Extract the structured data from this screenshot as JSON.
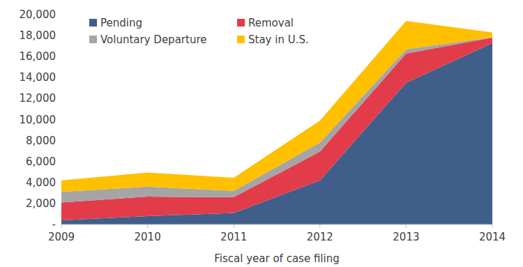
{
  "chart_data": {
    "type": "area",
    "stacked": true,
    "grid": false,
    "legend": "top",
    "x_label": "Fiscal year of case filing",
    "categories": [
      "2009",
      "2010",
      "2011",
      "2012",
      "2013",
      "2014"
    ],
    "series": [
      {
        "name": "Pending",
        "color": "#3f5f8a",
        "values": [
          400,
          800,
          1100,
          4200,
          13500,
          17300
        ]
      },
      {
        "name": "Removal",
        "color": "#e23c4b",
        "values": [
          1700,
          1850,
          1500,
          2750,
          2800,
          500
        ]
      },
      {
        "name": "Voluntary Departure",
        "color": "#a5a5a5",
        "values": [
          1000,
          950,
          600,
          850,
          400,
          50
        ]
      },
      {
        "name": "Stay in U.S.",
        "color": "#ffc000",
        "values": [
          1100,
          1350,
          1250,
          2100,
          2700,
          450
        ]
      }
    ],
    "ylim": [
      0,
      20000
    ],
    "yticks": [
      {
        "value": 0,
        "label": "-"
      },
      {
        "value": 2000,
        "label": "2,000"
      },
      {
        "value": 4000,
        "label": "4,000"
      },
      {
        "value": 6000,
        "label": "6,000"
      },
      {
        "value": 8000,
        "label": "8,000"
      },
      {
        "value": 10000,
        "label": "10,000"
      },
      {
        "value": 12000,
        "label": "12,000"
      },
      {
        "value": 14000,
        "label": "14,000"
      },
      {
        "value": 16000,
        "label": "16,000"
      },
      {
        "value": 18000,
        "label": "18,000"
      },
      {
        "value": 20000,
        "label": "20,000"
      }
    ]
  }
}
